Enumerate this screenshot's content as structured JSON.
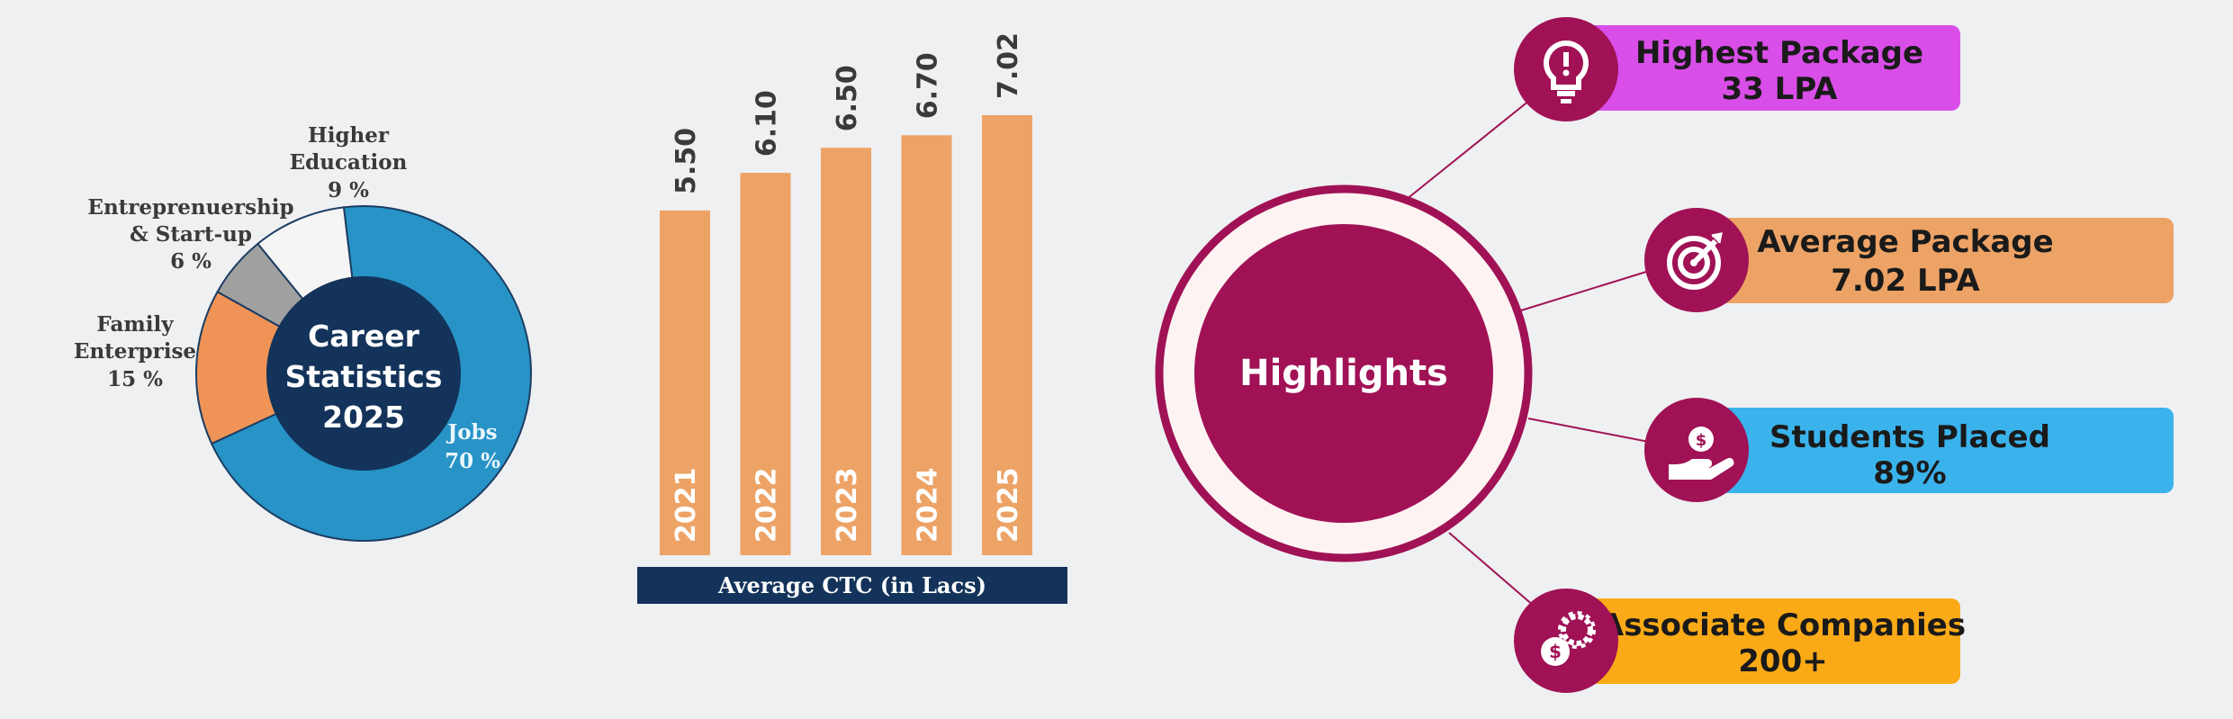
{
  "chart_data": [
    {
      "type": "pie",
      "title": "Career Statistics 2025",
      "categories": [
        "Jobs",
        "Family Enterprise",
        "Entreprenuership & Start-up",
        "Higher Education"
      ],
      "values": [
        70,
        15,
        6,
        9
      ],
      "value_labels": [
        "70 %",
        "15 %",
        "6 %",
        "9 %"
      ],
      "colors": [
        "#2793c6",
        "#ef9456",
        "#a0a0a0",
        "#f5f5f5"
      ]
    },
    {
      "type": "bar",
      "categories": [
        "2021",
        "2022",
        "2023",
        "2024",
        "2025"
      ],
      "values": [
        5.5,
        6.1,
        6.5,
        6.7,
        7.02
      ],
      "value_labels": [
        "5.50",
        "6.10",
        "6.50",
        "6.70",
        "7.02"
      ],
      "xlabel": "Average CTC (in Lacs)",
      "ylim": [
        0,
        7.5
      ],
      "bar_color": "#eda366"
    }
  ],
  "donut": {
    "center_line1": "Career",
    "center_line2": "Statistics",
    "center_line3": "2025",
    "labels": {
      "jobs_name": "Jobs",
      "jobs_value": "70 %",
      "family_line1": "Family",
      "family_line2": "Enterprise",
      "family_value": "15 %",
      "entre_line1": "Entreprenuership",
      "entre_line2": "& Start-up",
      "entre_value": "6 %",
      "higher_line1": "Higher",
      "higher_line2": "Education",
      "higher_value": "9 %"
    }
  },
  "highlights": {
    "title": "Highlights",
    "cards": [
      {
        "line1": "Highest Package",
        "line2": "33 LPA",
        "color": "#d94ee8",
        "icon": "lightbulb-icon"
      },
      {
        "line1": "Average Package",
        "line2": "7.02 LPA",
        "color": "#eda366",
        "icon": "target-icon"
      },
      {
        "line1": "Students Placed",
        "line2": "89%",
        "color": "#3ab3ec",
        "icon": "hand-coin-icon"
      },
      {
        "line1": "Associate Companies",
        "line2": "200+",
        "color": "#fbaa17",
        "icon": "gear-dollar-icon"
      }
    ],
    "accent": "#a01255"
  }
}
